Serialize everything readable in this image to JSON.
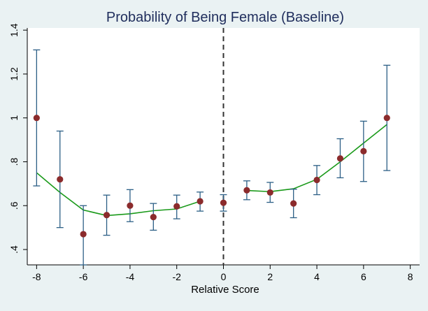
{
  "chart_data": {
    "type": "scatter",
    "title": "Probability of Being Female (Baseline)",
    "xlabel": "Relative Score",
    "ylabel": "",
    "xlim": [
      -8.4,
      8.4
    ],
    "ylim": [
      0.33,
      1.41
    ],
    "x_ticks": [
      -8,
      -6,
      -4,
      -2,
      0,
      2,
      4,
      6,
      8
    ],
    "x_tick_labels": [
      "-8",
      "-6",
      "-4",
      "-2",
      "0",
      "2",
      "4",
      "6",
      "8"
    ],
    "y_ticks": [
      0.4,
      0.6,
      0.8,
      1.0,
      1.2,
      1.4
    ],
    "y_tick_labels": [
      ".4",
      ".6",
      ".8",
      "1",
      "1.2",
      "1.4"
    ],
    "cutoff_x": 0,
    "grid": false,
    "legend": "none",
    "points": {
      "x": [
        -8,
        -7,
        -6,
        -5,
        -4,
        -3,
        -2,
        -1,
        0,
        1,
        2,
        3,
        4,
        5,
        6,
        7
      ],
      "y": [
        1.0,
        0.72,
        0.47,
        0.557,
        0.6,
        0.548,
        0.597,
        0.62,
        0.613,
        0.67,
        0.66,
        0.61,
        0.717,
        0.815,
        0.848,
        1.0
      ],
      "ci_low": [
        0.69,
        0.5,
        0.33,
        0.465,
        0.527,
        0.488,
        0.54,
        0.575,
        0.575,
        0.627,
        0.615,
        0.545,
        0.65,
        0.727,
        0.71,
        0.76
      ],
      "ci_high": [
        1.31,
        0.94,
        0.6,
        0.648,
        0.673,
        0.61,
        0.648,
        0.662,
        0.65,
        0.713,
        0.706,
        0.675,
        0.783,
        0.905,
        0.985,
        1.24
      ]
    },
    "fit_left": {
      "x": [
        -8,
        -7,
        -6,
        -5,
        -4,
        -3,
        -2,
        -1
      ],
      "y": [
        0.75,
        0.66,
        0.58,
        0.555,
        0.563,
        0.577,
        0.585,
        0.62
      ]
    },
    "fit_right": {
      "x": [
        1,
        2,
        3,
        4,
        5,
        6,
        7
      ],
      "y": [
        0.669,
        0.664,
        0.677,
        0.72,
        0.8,
        0.885,
        0.97
      ]
    },
    "colors": {
      "background": "#eaf2f3",
      "plot_area": "#ffffff",
      "point": "#8b2b2c",
      "error_bar": "#2c5f86",
      "fit_line": "#1a9a1a",
      "cutoff_line": "#333333",
      "title": "#1f2d5c"
    }
  }
}
